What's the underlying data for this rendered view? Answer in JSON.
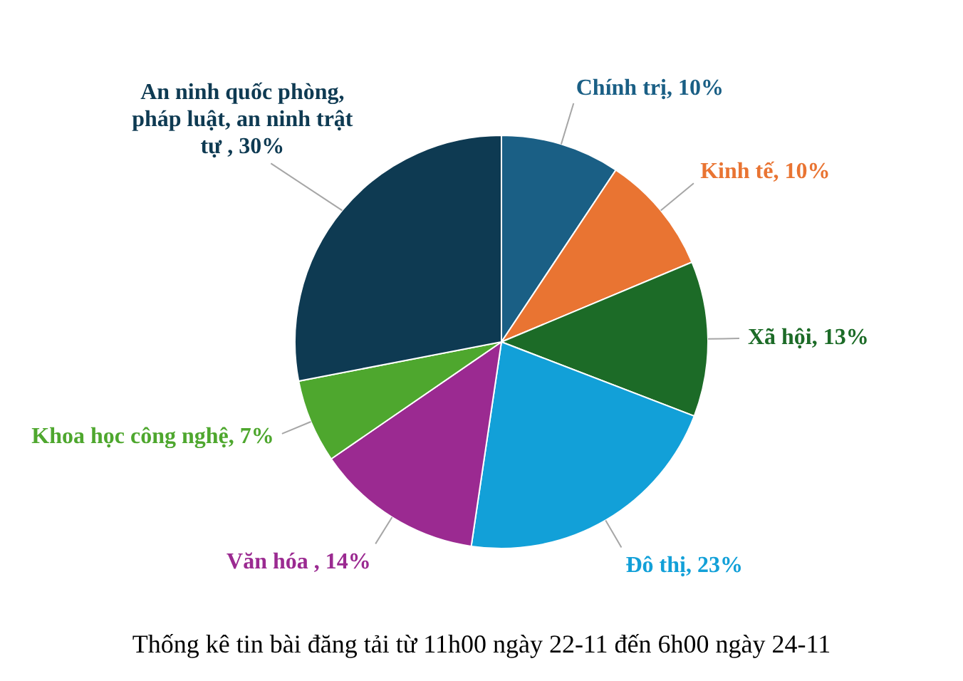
{
  "chart_data": {
    "type": "pie",
    "title": "Thống kê tin bài đăng tải từ 11h00 ngày 22-11 đến 6h00 ngày 24-11",
    "categories": [
      "Chính trị",
      "Kinh tế",
      "Xã hội",
      "Đô thị",
      "Văn hóa ",
      "Khoa học công nghệ",
      "An ninh quốc phòng, pháp luật, an ninh trật tự "
    ],
    "values": [
      10,
      10,
      13,
      23,
      14,
      7,
      30
    ],
    "colors": [
      "#1a5f85",
      "#e97432",
      "#1c6b27",
      "#12a0d8",
      "#9b2a91",
      "#4ea72e",
      "#0e3a52"
    ],
    "value_labels": [
      "10%",
      "10%",
      "13%",
      "23%",
      "14%",
      "7%",
      "30%"
    ]
  }
}
